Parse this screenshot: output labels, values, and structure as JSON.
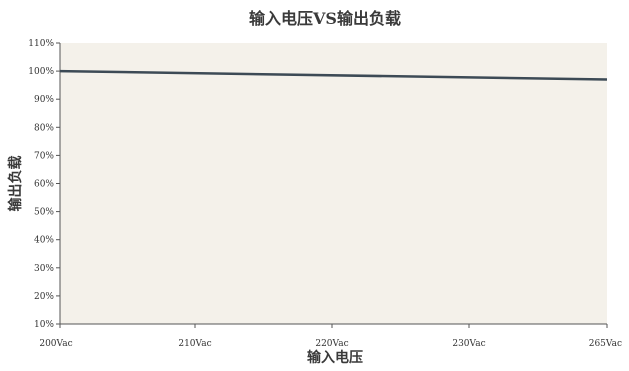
{
  "chart_data": {
    "type": "line",
    "title": "输入电压VS输出负载",
    "xlabel": "输入电压",
    "ylabel": "输出负载",
    "x": [
      200,
      265
    ],
    "x_ticks": [
      200,
      210,
      220,
      230,
      265
    ],
    "x_tick_labels": [
      "200Vac",
      "210Vac",
      "220Vac",
      "230Vac",
      "265Vac"
    ],
    "y_ticks": [
      10,
      20,
      30,
      40,
      50,
      60,
      70,
      80,
      90,
      100,
      110
    ],
    "y_tick_labels": [
      "10%",
      "20%",
      "30%",
      "40%",
      "50%",
      "60%",
      "70%",
      "80%",
      "90%",
      "100%",
      "110%"
    ],
    "ylim": [
      10,
      110
    ],
    "grid": false,
    "series": [
      {
        "x": [
          200,
          265
        ],
        "values": [
          100,
          97
        ],
        "color": "#3c4a55"
      }
    ],
    "colors": {
      "plot_background": "#f4f1ea",
      "axis": "#555555",
      "line": "#3c4a55"
    }
  }
}
